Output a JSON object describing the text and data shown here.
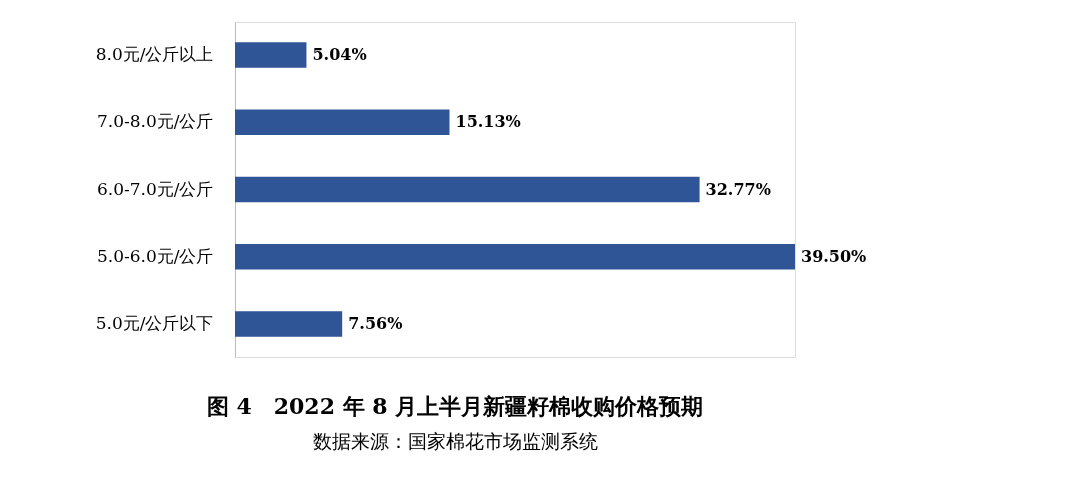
{
  "chart_data": {
    "type": "bar",
    "orientation": "horizontal",
    "title": "图 4　2022 年 8 月上半月新疆籽棉收购价格预期",
    "annotations": [
      "数据来源：国家棉花市场监测系统"
    ],
    "categories": [
      "8.0元/公斤以上",
      "7.0-8.0元/公斤",
      "6.0-7.0元/公斤",
      "5.0-6.0元/公斤",
      "5.0元/公斤以下"
    ],
    "values": [
      5.04,
      15.13,
      32.77,
      39.5,
      7.56
    ],
    "value_labels": [
      "5.04%",
      "15.13%",
      "32.77%",
      "39.50%",
      "7.56%"
    ],
    "color": "#2f5597"
  }
}
